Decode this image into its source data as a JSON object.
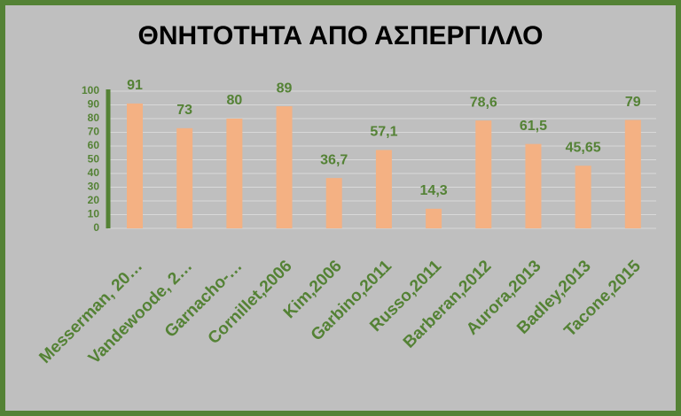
{
  "chart_data": {
    "type": "bar",
    "title": "ΘΝΗΤΟΤΗΤΑ ΑΠΟ ΑΣΠΕΡΓΙΛΛΟ",
    "categories": [
      "Messerman, 20…",
      "Vandewoode, 2…",
      "Garnacho-…",
      "Cornillet,2006",
      "Kim,2006",
      "Garbino,2011",
      "Russo,2011",
      "Barberan,2012",
      "Aurora,2013",
      "Badley,2013",
      "Tacone,2015"
    ],
    "values": [
      91,
      73,
      80,
      89,
      36.7,
      57.1,
      14.3,
      78.6,
      61.5,
      45.65,
      79
    ],
    "value_labels": [
      "91",
      "73",
      "80",
      "89",
      "36,7",
      "57,1",
      "14,3",
      "78,6",
      "61,5",
      "45,65",
      "79"
    ],
    "color": "#f4b183",
    "ylim": [
      0,
      100
    ],
    "yticks": [
      0,
      10,
      20,
      30,
      40,
      50,
      60,
      70,
      80,
      90,
      100
    ],
    "grid": true
  }
}
